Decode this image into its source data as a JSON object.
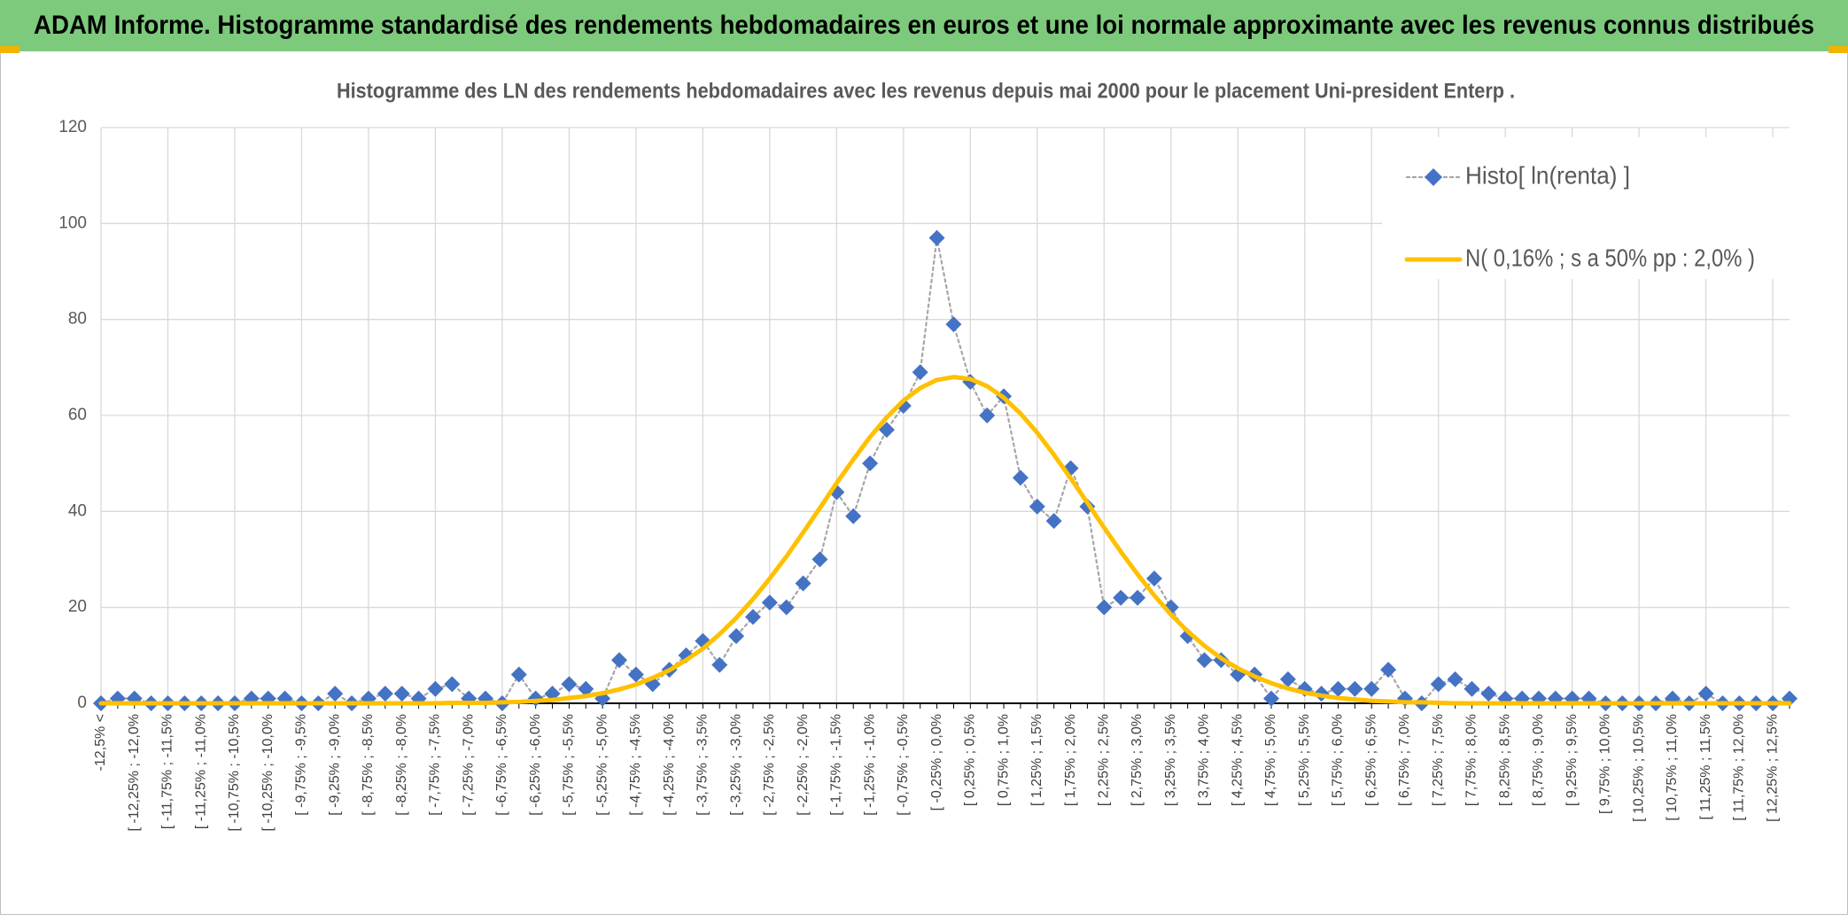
{
  "header": {
    "title": "ADAM Informe. Histogramme standardisé des rendements hebdomadaires en euros et une loi normale approximante avec les revenus connus distribués"
  },
  "chart_data": {
    "type": "line",
    "title": "Histogramme des LN des rendements hebdomadaires avec les revenus depuis mai 2000 pour le placement Uni-president Enterp .",
    "categories": [
      "-12,5% <",
      null,
      "[ -12,25% ; -12,0%",
      null,
      "[ -11,75% ; -11,5%",
      null,
      "[ -11,25% ; -11,0%",
      null,
      "[ -10,75% ; -10,5%",
      null,
      "[ -10,25% ; -10,0%",
      null,
      "[ -9,75% ; -9,5%",
      null,
      "[ -9,25% ; -9,0%",
      null,
      "[ -8,75% ; -8,5%",
      null,
      "[ -8,25% ; -8,0%",
      null,
      "[ -7,75% ; -7,5%",
      null,
      "[ -7,25% ; -7,0%",
      null,
      "[ -6,75% ; -6,5%",
      null,
      "[ -6,25% ; -6,0%",
      null,
      "[ -5,75% ; -5,5%",
      null,
      "[ -5,25% ; -5,0%",
      null,
      "[ -4,75% ; -4,5%",
      null,
      "[ -4,25% ; -4,0%",
      null,
      "[ -3,75% ; -3,5%",
      null,
      "[ -3,25% ; -3,0%",
      null,
      "[ -2,75% ; -2,5%",
      null,
      "[ -2,25% ; -2,0%",
      null,
      "[ -1,75% ; -1,5%",
      null,
      "[ -1,25% ; -1,0%",
      null,
      "[ -0,75% ; -0,5%",
      null,
      "[ -0,25% ; 0,0%",
      null,
      "[ 0,25% ; 0,5%",
      null,
      "[ 0,75% ; 1,0%",
      null,
      "[ 1,25% ; 1,5%",
      null,
      "[ 1,75% ; 2,0%",
      null,
      "[ 2,25% ; 2,5%",
      null,
      "[ 2,75% ; 3,0%",
      null,
      "[ 3,25% ; 3,5%",
      null,
      "[ 3,75% ; 4,0%",
      null,
      "[ 4,25% ; 4,5%",
      null,
      "[ 4,75% ; 5,0%",
      null,
      "[ 5,25% ; 5,5%",
      null,
      "[ 5,75% ; 6,0%",
      null,
      "[ 6,25% ; 6,5%",
      null,
      "[ 6,75% ; 7,0%",
      null,
      "[ 7,25% ; 7,5%",
      null,
      "[ 7,75% ; 8,0%",
      null,
      "[ 8,25% ; 8,5%",
      null,
      "[ 8,75% ; 9,0%",
      null,
      "[ 9,25% ; 9,5%",
      null,
      "[ 9,75% ; 10,0%",
      null,
      "[ 10,25% ; 10,5%",
      null,
      "[ 10,75% ; 11,0%",
      null,
      "[ 11,25% ; 11,5%",
      null,
      "[ 11,75% ; 12,0%",
      null,
      "[ 12,25% ; 12,5%",
      null
    ],
    "series": [
      {
        "name": "Histo[ ln(renta) ]",
        "color": "#4472c4",
        "line_color": "#a6a6a6",
        "line_style": "dotted",
        "marker": "diamond",
        "values": [
          0,
          1,
          1,
          0,
          0,
          0,
          0,
          0,
          0,
          1,
          1,
          1,
          0,
          0,
          2,
          0,
          1,
          2,
          2,
          1,
          3,
          4,
          1,
          1,
          0,
          6,
          1,
          2,
          4,
          3,
          1,
          9,
          6,
          4,
          7,
          10,
          13,
          8,
          14,
          18,
          21,
          20,
          25,
          30,
          44,
          39,
          50,
          57,
          62,
          69,
          97,
          79,
          67,
          60,
          64,
          47,
          41,
          38,
          49,
          41,
          20,
          22,
          22,
          26,
          20,
          14,
          9,
          9,
          6,
          6,
          1,
          5,
          3,
          2,
          3,
          3,
          3,
          7,
          1,
          0,
          4,
          5,
          3,
          2,
          1,
          1,
          1,
          1,
          1,
          1,
          0,
          0,
          0,
          0,
          1,
          0,
          2,
          0,
          0,
          0,
          0,
          1
        ]
      },
      {
        "name": "N( 0,16% ; s a 50% pp : 2,0% )",
        "color": "#ffc000",
        "line_style": "solid",
        "values": [
          0,
          0,
          0,
          0,
          0,
          0,
          0,
          0,
          0,
          0,
          0,
          0,
          0,
          0,
          0,
          0,
          0,
          0,
          0,
          0,
          0,
          0.1,
          0.1,
          0.1,
          0.2,
          0.3,
          0.5,
          0.7,
          1.1,
          1.5,
          2.1,
          2.9,
          3.9,
          5.3,
          6.9,
          9.0,
          11.4,
          14.4,
          17.8,
          21.7,
          26.0,
          30.6,
          35.6,
          40.7,
          45.9,
          50.8,
          55.5,
          59.6,
          63.1,
          65.7,
          67.4,
          68.0,
          67.6,
          66.1,
          63.7,
          60.4,
          56.4,
          51.8,
          46.9,
          41.8,
          36.6,
          31.6,
          26.9,
          22.5,
          18.5,
          15.0,
          12.0,
          9.4,
          7.3,
          5.6,
          4.2,
          3.1,
          2.2,
          1.6,
          1.1,
          0.8,
          0.5,
          0.4,
          0.2,
          0.2,
          0.1,
          0,
          0,
          0,
          0,
          0,
          0,
          0,
          0,
          0,
          0,
          0,
          0,
          0,
          0,
          0,
          0,
          0,
          0,
          0,
          0,
          0
        ]
      }
    ],
    "ylim": [
      0,
      120
    ],
    "yticks": [
      0,
      20,
      40,
      60,
      80,
      100,
      120
    ],
    "grid": true,
    "legend": "upper right"
  }
}
